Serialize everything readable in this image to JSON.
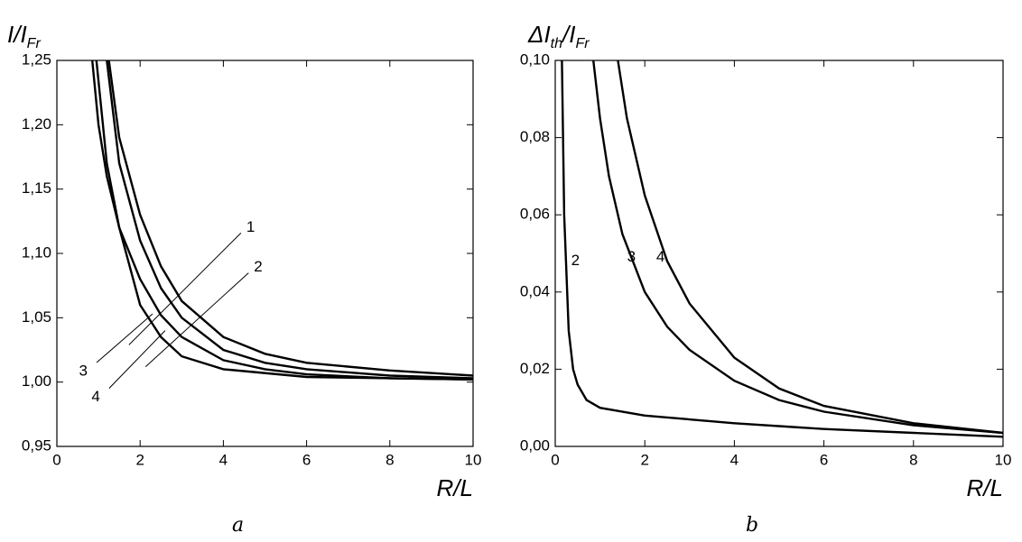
{
  "chart_data": [
    {
      "type": "line",
      "panel": "a",
      "xlabel": "R/L",
      "ylabel": [
        {
          "text": "I/I"
        },
        {
          "text": "Fr",
          "sub": true
        }
      ],
      "xlim": [
        0,
        10
      ],
      "xticks": [
        0,
        2,
        4,
        6,
        8,
        10
      ],
      "ylim": [
        0.95,
        1.25
      ],
      "yticks": [
        {
          "value": 0.95,
          "label": "0,95"
        },
        {
          "value": 1.0,
          "label": "1,00"
        },
        {
          "value": 1.05,
          "label": "1,05"
        },
        {
          "value": 1.1,
          "label": "1,10"
        },
        {
          "value": 1.15,
          "label": "1,15"
        },
        {
          "value": 1.2,
          "label": "1,20"
        },
        {
          "value": 1.25,
          "label": "1,25"
        }
      ],
      "series": [
        {
          "name": "1",
          "color": "#000000",
          "x": [
            1.25,
            1.5,
            2,
            2.5,
            3,
            4,
            5,
            6,
            8,
            10
          ],
          "values": [
            1.25,
            1.19,
            1.13,
            1.09,
            1.063,
            1.035,
            1.022,
            1.015,
            1.009,
            1.005
          ]
        },
        {
          "name": "2",
          "color": "#000000",
          "x": [
            1.2,
            1.5,
            2,
            2.5,
            3,
            4,
            5,
            6,
            8,
            10
          ],
          "values": [
            1.25,
            1.17,
            1.11,
            1.073,
            1.05,
            1.025,
            1.015,
            1.01,
            1.005,
            1.003
          ]
        },
        {
          "name": "3",
          "color": "#000000",
          "x": [
            0.95,
            1.2,
            1.5,
            2,
            2.5,
            3,
            4,
            5,
            6,
            8,
            10
          ],
          "values": [
            1.25,
            1.17,
            1.12,
            1.08,
            1.052,
            1.035,
            1.017,
            1.01,
            1.006,
            1.003,
            1.002
          ]
        },
        {
          "name": "4",
          "color": "#000000",
          "x": [
            0.85,
            1,
            1.2,
            1.5,
            2,
            2.5,
            3,
            4,
            6,
            8,
            10
          ],
          "values": [
            1.25,
            1.2,
            1.16,
            1.12,
            1.06,
            1.035,
            1.02,
            1.01,
            1.004,
            1.003,
            1.002
          ]
        }
      ]
    },
    {
      "type": "line",
      "panel": "b",
      "xlabel": "R/L",
      "ylabel": [
        {
          "text": "ΔI"
        },
        {
          "text": "th",
          "sub": true
        },
        {
          "text": "/I"
        },
        {
          "text": "Fr",
          "sub": true
        }
      ],
      "xlim": [
        0,
        10
      ],
      "xticks": [
        0,
        2,
        4,
        6,
        8,
        10
      ],
      "ylim": [
        0,
        0.1
      ],
      "yticks": [
        {
          "value": 0,
          "label": "0,00"
        },
        {
          "value": 0.02,
          "label": "0,02"
        },
        {
          "value": 0.04,
          "label": "0,04"
        },
        {
          "value": 0.06,
          "label": "0,06"
        },
        {
          "value": 0.08,
          "label": "0,08"
        },
        {
          "value": 0.1,
          "label": "0,10"
        }
      ],
      "series": [
        {
          "name": "2",
          "color": "#000000",
          "x": [
            0.15,
            0.2,
            0.3,
            0.4,
            0.5,
            0.7,
            1,
            2,
            4,
            6,
            8,
            10
          ],
          "values": [
            0.1,
            0.06,
            0.03,
            0.02,
            0.016,
            0.012,
            0.01,
            0.008,
            0.006,
            0.0045,
            0.0035,
            0.0025
          ]
        },
        {
          "name": "3",
          "color": "#000000",
          "x": [
            0.85,
            1,
            1.2,
            1.5,
            2,
            2.5,
            3,
            4,
            5,
            6,
            8,
            10
          ],
          "values": [
            0.1,
            0.085,
            0.07,
            0.055,
            0.04,
            0.031,
            0.025,
            0.017,
            0.012,
            0.009,
            0.0055,
            0.0035
          ]
        },
        {
          "name": "4",
          "color": "#000000",
          "x": [
            1.4,
            1.6,
            2,
            2.5,
            3,
            4,
            5,
            6,
            8,
            10
          ],
          "values": [
            0.1,
            0.085,
            0.065,
            0.048,
            0.037,
            0.023,
            0.015,
            0.0105,
            0.006,
            0.0035
          ]
        }
      ]
    }
  ]
}
